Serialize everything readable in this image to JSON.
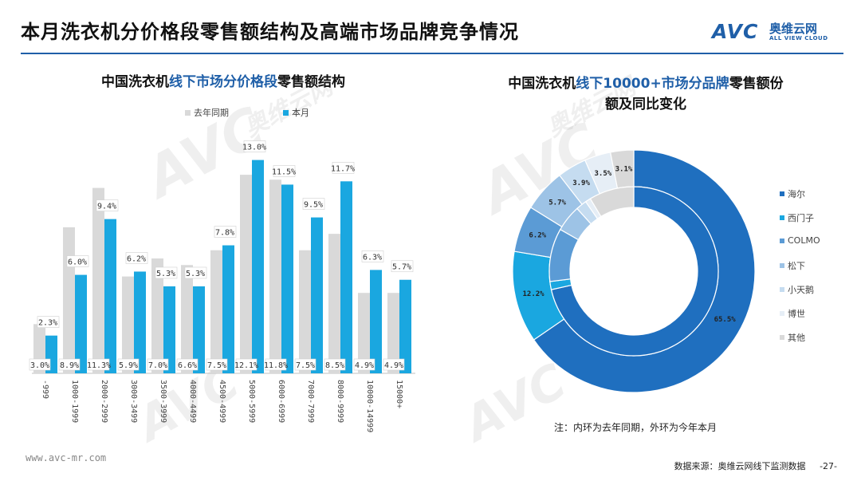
{
  "header": {
    "title": "本月洗衣机分价格段零售额结构及高端市场品牌竞争情况",
    "logo_avc": "AVC",
    "logo_cn": "奥维云网",
    "logo_en": "ALL VIEW CLOUD"
  },
  "watermark": {
    "main": "AVC",
    "sub": "ALL VIEW CLOUD",
    "cn": "奥维云网"
  },
  "footer": {
    "url": "www.avc-mr.com",
    "source": "数据来源：奥维云网线下监测数据",
    "page": "-27-"
  },
  "chart_data": [
    {
      "type": "bar",
      "title_parts": [
        "中国洗衣机",
        "线下市场分价格段",
        "零售额结构"
      ],
      "categories": [
        "-999",
        "1000-1999",
        "2000-2999",
        "3000-3499",
        "3500-3999",
        "4000-4499",
        "4500-4999",
        "5000-5999",
        "6000-6999",
        "7000-7999",
        "8000-9999",
        "10000-14999",
        "15000+"
      ],
      "series": [
        {
          "name": "去年同期",
          "color": "#d9d9d9",
          "values": [
            3.0,
            8.9,
            11.3,
            5.9,
            7.0,
            6.6,
            7.5,
            12.1,
            11.8,
            7.5,
            8.5,
            4.9,
            4.9
          ]
        },
        {
          "name": "本月",
          "color": "#1aa7e0",
          "values": [
            2.3,
            6.0,
            9.4,
            6.2,
            5.3,
            5.3,
            7.8,
            13.0,
            11.5,
            9.5,
            11.7,
            6.3,
            5.7
          ]
        }
      ],
      "ylim": [
        0,
        14
      ],
      "grid": false,
      "legend_position": "top"
    },
    {
      "type": "pie",
      "subtype": "double-donut",
      "title_line1_parts": [
        "中国洗衣机",
        "线下10000+市场分品牌",
        "零售额份"
      ],
      "title_line2": "额及同比变化",
      "categories": [
        "海尔",
        "西门子",
        "COLMO",
        "松下",
        "小天鹅",
        "博世",
        "其他"
      ],
      "colors": [
        "#1f6fbf",
        "#1aa7e0",
        "#5b9bd5",
        "#9dc3e6",
        "#c5dcf0",
        "#e6eef6",
        "#d9d9d9"
      ],
      "inner_ring": {
        "name": "去年同期",
        "values": [
          69.0,
          1.5,
          9.8,
          4.9,
          2.0,
          1.0,
          8.3
        ]
      },
      "outer_ring": {
        "name": "本月",
        "values": [
          65.5,
          12.2,
          6.2,
          5.7,
          3.9,
          3.5,
          3.1
        ]
      },
      "outer_labels": [
        "65.5%",
        "12.2%",
        "6.2%",
        "5.7%",
        "3.9%",
        "3.5%",
        "3.1%"
      ],
      "note": "注：内环为去年同期，外环为今年本月",
      "legend_position": "right"
    }
  ]
}
